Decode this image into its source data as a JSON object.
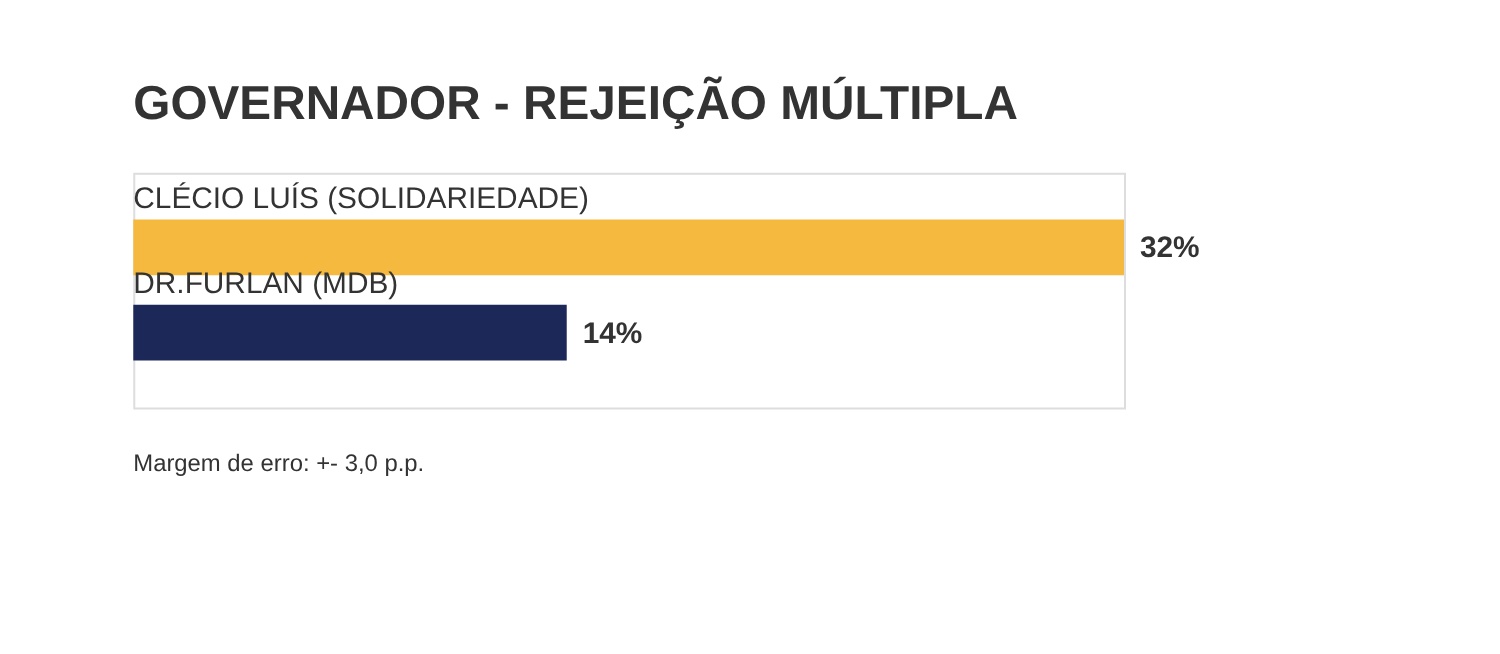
{
  "chart_data": {
    "type": "bar",
    "orientation": "horizontal",
    "title": "GOVERNADOR - REJEIÇÃO MÚLTIPLA",
    "categories": [
      "CLÉCIO LUÍS (SOLIDARIEDADE)",
      "DR.FURLAN (MDB)"
    ],
    "values": [
      32,
      14
    ],
    "colors": [
      "#f4b93e",
      "#1c2858"
    ],
    "value_labels": [
      "32%",
      "14%"
    ],
    "annotations": [
      "Margem de erro: +- 3,0 p.p."
    ]
  }
}
